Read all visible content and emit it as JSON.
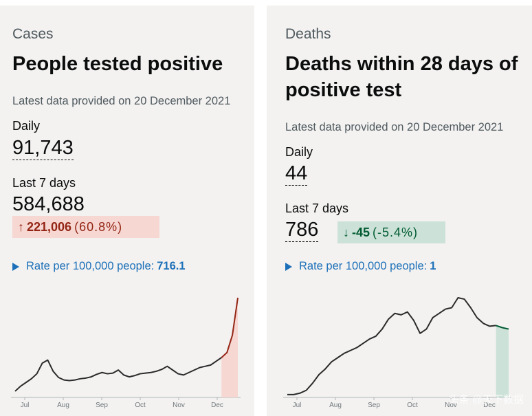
{
  "cases": {
    "category": "Cases",
    "heading": "People tested positive",
    "latest": "Latest data provided on 20 December 2021",
    "daily_label": "Daily",
    "daily_value": "91,743",
    "week_label": "Last 7 days",
    "week_value": "584,688",
    "change_arrow": "↑",
    "change_value": "221,006",
    "change_pct": "(60.8%)",
    "rate_label": "Rate per 100,000 people:",
    "rate_value": "716.1"
  },
  "deaths": {
    "category": "Deaths",
    "heading": "Deaths within 28 days of positive test",
    "latest": "Latest data provided on 20 December 2021",
    "daily_label": "Daily",
    "daily_value": "44",
    "week_label": "Last 7 days",
    "week_value": "786",
    "change_arrow": "↓",
    "change_value": "-45",
    "change_pct": "(-5.4%)",
    "rate_label": "Rate per 100,000 people:",
    "rate_value": "1"
  },
  "watermark": "头条 @天下数据",
  "colors": {
    "up_bg": "#f6d7d2",
    "up_text": "#942514",
    "down_bg": "#cce2d8",
    "down_text": "#005a30",
    "link": "#1d70b8"
  },
  "chart_data": [
    {
      "type": "line",
      "title": "",
      "months": [
        "Jul",
        "Aug",
        "Sep",
        "Oct",
        "Nov",
        "Dec"
      ],
      "series": [
        {
          "values": [
            10,
            18,
            24,
            30,
            38,
            55,
            60,
            42,
            32,
            28,
            27,
            28,
            30,
            31,
            33,
            37,
            40,
            38,
            39,
            44,
            36,
            33,
            35,
            38,
            39,
            40,
            42,
            45,
            50,
            44,
            38,
            36,
            40,
            44,
            48,
            50,
            52,
            58,
            64,
            72,
            100,
            160
          ],
          "highlight_from_index": 38
        }
      ]
    },
    {
      "type": "line",
      "title": "",
      "months": [
        "Jul",
        "Aug",
        "Sep",
        "Oct",
        "Nov",
        "Dec"
      ],
      "series": [
        {
          "values": [
            4,
            4,
            6,
            10,
            20,
            32,
            40,
            50,
            56,
            62,
            66,
            70,
            76,
            82,
            86,
            96,
            110,
            118,
            116,
            120,
            108,
            90,
            96,
            112,
            118,
            124,
            126,
            140,
            138,
            126,
            112,
            104,
            100,
            101,
            98,
            96
          ],
          "highlight_from_index": 33
        }
      ]
    }
  ]
}
